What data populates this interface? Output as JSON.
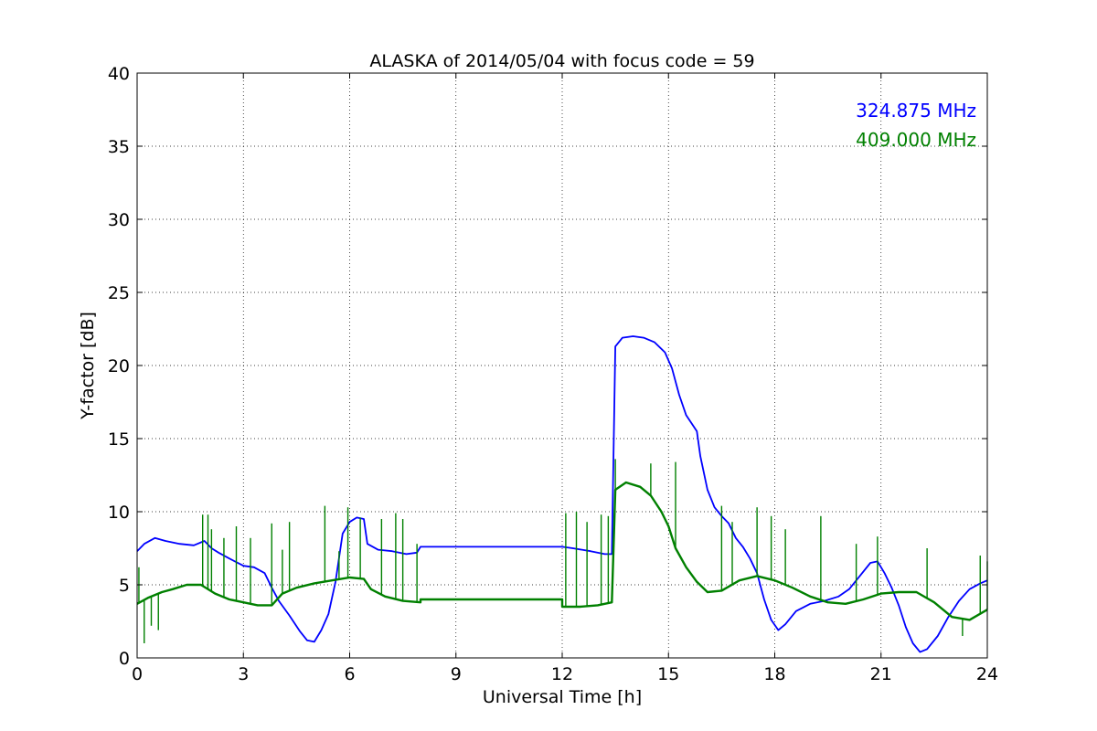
{
  "chart_data": {
    "type": "line",
    "title": "ALASKA of 2014/05/04 with focus code = 59",
    "xlabel": "Universal Time [h]",
    "ylabel": "Y-factor [dB]",
    "xlim": [
      0,
      24
    ],
    "ylim": [
      0,
      40
    ],
    "x_ticks": [
      0,
      3,
      6,
      9,
      12,
      15,
      18,
      21,
      24
    ],
    "y_ticks": [
      0,
      5,
      10,
      15,
      20,
      25,
      30,
      35,
      40
    ],
    "grid": true,
    "legend_position": "top-right",
    "series": [
      {
        "name": "324.875 MHz",
        "color": "#0000ff",
        "points": [
          [
            0.0,
            7.3
          ],
          [
            0.2,
            7.8
          ],
          [
            0.5,
            8.2
          ],
          [
            0.8,
            8.0
          ],
          [
            1.2,
            7.8
          ],
          [
            1.6,
            7.7
          ],
          [
            1.9,
            8.0
          ],
          [
            2.1,
            7.5
          ],
          [
            2.3,
            7.2
          ],
          [
            2.6,
            6.8
          ],
          [
            3.0,
            6.3
          ],
          [
            3.3,
            6.2
          ],
          [
            3.6,
            5.8
          ],
          [
            3.8,
            4.8
          ],
          [
            4.0,
            3.9
          ],
          [
            4.3,
            2.9
          ],
          [
            4.6,
            1.8
          ],
          [
            4.8,
            1.2
          ],
          [
            5.0,
            1.1
          ],
          [
            5.2,
            1.9
          ],
          [
            5.4,
            3.0
          ],
          [
            5.6,
            5.2
          ],
          [
            5.8,
            8.5
          ],
          [
            6.0,
            9.3
          ],
          [
            6.2,
            9.6
          ],
          [
            6.4,
            9.5
          ],
          [
            6.5,
            7.8
          ],
          [
            6.8,
            7.4
          ],
          [
            7.2,
            7.3
          ],
          [
            7.6,
            7.1
          ],
          [
            7.9,
            7.2
          ],
          [
            8.0,
            7.6
          ],
          [
            12.0,
            7.6
          ],
          [
            12.3,
            7.5
          ],
          [
            12.8,
            7.3
          ],
          [
            13.2,
            7.1
          ],
          [
            13.4,
            7.1
          ],
          [
            13.5,
            21.3
          ],
          [
            13.7,
            21.9
          ],
          [
            14.0,
            22.0
          ],
          [
            14.3,
            21.9
          ],
          [
            14.6,
            21.6
          ],
          [
            14.9,
            20.9
          ],
          [
            15.1,
            19.8
          ],
          [
            15.3,
            18.0
          ],
          [
            15.5,
            16.6
          ],
          [
            15.8,
            15.5
          ],
          [
            15.9,
            13.8
          ],
          [
            16.1,
            11.5
          ],
          [
            16.3,
            10.3
          ],
          [
            16.5,
            9.7
          ],
          [
            16.7,
            9.2
          ],
          [
            16.9,
            8.2
          ],
          [
            17.1,
            7.6
          ],
          [
            17.3,
            6.8
          ],
          [
            17.5,
            5.8
          ],
          [
            17.7,
            4.0
          ],
          [
            17.9,
            2.6
          ],
          [
            18.1,
            1.9
          ],
          [
            18.3,
            2.3
          ],
          [
            18.6,
            3.2
          ],
          [
            19.0,
            3.7
          ],
          [
            19.4,
            3.9
          ],
          [
            19.8,
            4.2
          ],
          [
            20.1,
            4.7
          ],
          [
            20.4,
            5.6
          ],
          [
            20.7,
            6.5
          ],
          [
            20.9,
            6.6
          ],
          [
            21.1,
            5.8
          ],
          [
            21.3,
            4.8
          ],
          [
            21.5,
            3.6
          ],
          [
            21.7,
            2.1
          ],
          [
            21.9,
            1.0
          ],
          [
            22.1,
            0.4
          ],
          [
            22.3,
            0.6
          ],
          [
            22.6,
            1.5
          ],
          [
            22.9,
            2.8
          ],
          [
            23.2,
            3.9
          ],
          [
            23.5,
            4.7
          ],
          [
            23.8,
            5.1
          ],
          [
            24.0,
            5.3
          ]
        ],
        "spikes": []
      },
      {
        "name": "409.000 MHz",
        "color": "#008000",
        "points": [
          [
            0.0,
            3.7
          ],
          [
            0.3,
            4.1
          ],
          [
            0.7,
            4.5
          ],
          [
            1.0,
            4.7
          ],
          [
            1.4,
            5.0
          ],
          [
            1.8,
            5.0
          ],
          [
            2.2,
            4.4
          ],
          [
            2.6,
            4.0
          ],
          [
            3.0,
            3.8
          ],
          [
            3.4,
            3.6
          ],
          [
            3.8,
            3.6
          ],
          [
            4.1,
            4.4
          ],
          [
            4.5,
            4.8
          ],
          [
            5.0,
            5.1
          ],
          [
            5.5,
            5.3
          ],
          [
            6.0,
            5.5
          ],
          [
            6.4,
            5.4
          ],
          [
            6.6,
            4.7
          ],
          [
            7.0,
            4.2
          ],
          [
            7.5,
            3.9
          ],
          [
            8.0,
            3.8
          ],
          [
            8.0,
            4.0
          ],
          [
            12.0,
            4.0
          ],
          [
            12.0,
            3.5
          ],
          [
            12.5,
            3.5
          ],
          [
            13.0,
            3.6
          ],
          [
            13.4,
            3.8
          ],
          [
            13.5,
            11.5
          ],
          [
            13.8,
            12.0
          ],
          [
            14.2,
            11.7
          ],
          [
            14.5,
            11.1
          ],
          [
            14.8,
            10.0
          ],
          [
            15.0,
            9.0
          ],
          [
            15.2,
            7.5
          ],
          [
            15.5,
            6.2
          ],
          [
            15.8,
            5.2
          ],
          [
            16.1,
            4.5
          ],
          [
            16.5,
            4.6
          ],
          [
            17.0,
            5.3
          ],
          [
            17.5,
            5.6
          ],
          [
            18.0,
            5.3
          ],
          [
            18.5,
            4.8
          ],
          [
            19.0,
            4.2
          ],
          [
            19.5,
            3.8
          ],
          [
            20.0,
            3.7
          ],
          [
            20.5,
            4.0
          ],
          [
            21.0,
            4.4
          ],
          [
            21.5,
            4.5
          ],
          [
            22.0,
            4.5
          ],
          [
            22.5,
            3.8
          ],
          [
            23.0,
            2.8
          ],
          [
            23.5,
            2.6
          ],
          [
            24.0,
            3.3
          ]
        ],
        "spikes": [
          [
            0.05,
            6.2
          ],
          [
            0.2,
            1.0
          ],
          [
            0.4,
            2.2
          ],
          [
            0.6,
            1.9
          ],
          [
            1.85,
            9.8
          ],
          [
            2.0,
            9.8
          ],
          [
            2.1,
            8.8
          ],
          [
            2.45,
            8.2
          ],
          [
            2.8,
            9.0
          ],
          [
            3.2,
            8.2
          ],
          [
            3.8,
            9.2
          ],
          [
            4.1,
            7.4
          ],
          [
            4.3,
            9.3
          ],
          [
            5.3,
            10.4
          ],
          [
            5.7,
            7.3
          ],
          [
            5.95,
            10.3
          ],
          [
            6.3,
            9.6
          ],
          [
            6.9,
            9.5
          ],
          [
            7.3,
            9.9
          ],
          [
            7.5,
            9.5
          ],
          [
            7.9,
            7.8
          ],
          [
            12.1,
            9.9
          ],
          [
            12.4,
            10.0
          ],
          [
            12.7,
            9.3
          ],
          [
            13.1,
            9.8
          ],
          [
            13.3,
            9.7
          ],
          [
            13.5,
            13.6
          ],
          [
            14.5,
            13.3
          ],
          [
            15.2,
            13.4
          ],
          [
            16.5,
            10.4
          ],
          [
            16.8,
            9.3
          ],
          [
            17.5,
            10.3
          ],
          [
            17.9,
            9.7
          ],
          [
            18.3,
            8.8
          ],
          [
            19.3,
            9.7
          ],
          [
            20.3,
            7.8
          ],
          [
            20.9,
            8.3
          ],
          [
            22.3,
            7.5
          ],
          [
            23.3,
            1.5
          ],
          [
            23.8,
            7.0
          ],
          [
            24.0,
            6.6
          ]
        ]
      }
    ]
  }
}
